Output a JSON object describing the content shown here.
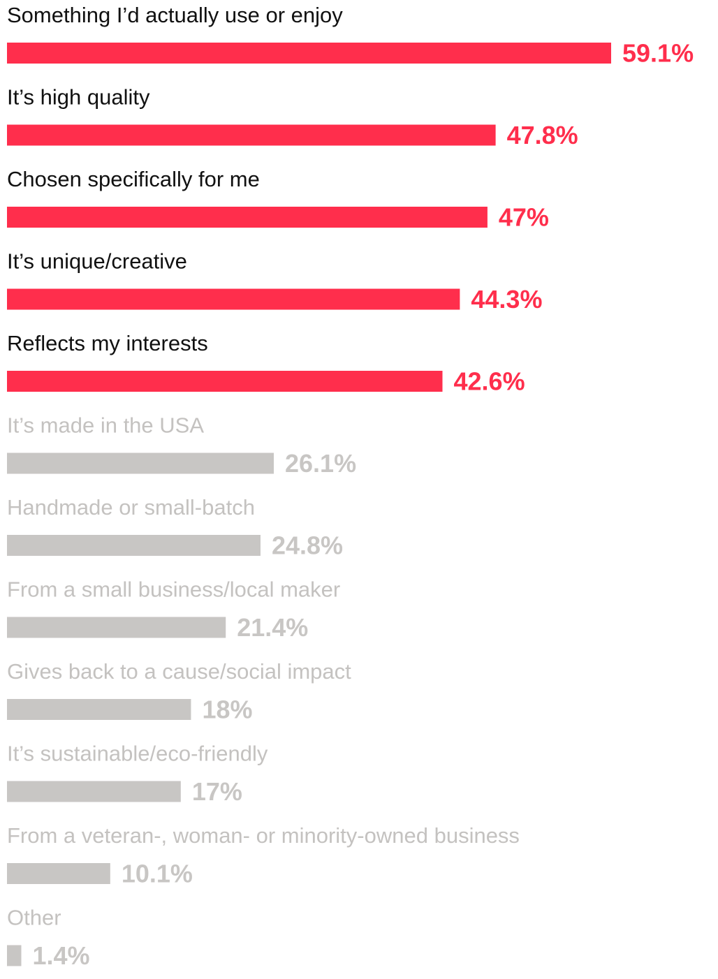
{
  "chart_data": {
    "type": "bar",
    "categories": [
      "Something I’d actually use or enjoy",
      "It’s high quality",
      "Chosen specifically for me",
      "It’s unique/creative",
      "Reflects my interests",
      "It’s made in the USA",
      "Handmade or small-batch",
      "From a small business/local maker",
      "Gives back to a cause/social impact",
      "It’s sustainable/eco-friendly",
      "From a veteran-, woman- or minority-owned business",
      "Other"
    ],
    "values": [
      59.1,
      47.8,
      47,
      44.3,
      42.6,
      26.1,
      24.8,
      21.4,
      18,
      17,
      10.1,
      1.4
    ],
    "value_labels": [
      "59.1%",
      "47.8%",
      "47%",
      "44.3%",
      "42.6%",
      "26.1%",
      "24.8%",
      "21.4%",
      "18%",
      "17%",
      "10.1%",
      "1.4%"
    ],
    "colors": [
      "#ff2e4c",
      "#ff2e4c",
      "#ff2e4c",
      "#ff2e4c",
      "#ff2e4c",
      "#c8c6c4",
      "#c8c6c4",
      "#c8c6c4",
      "#c8c6c4",
      "#c8c6c4",
      "#c8c6c4",
      "#c8c6c4"
    ],
    "label_colors": [
      "#111111",
      "#111111",
      "#111111",
      "#111111",
      "#111111",
      "#c4c2c0",
      "#c4c2c0",
      "#c4c2c0",
      "#c4c2c0",
      "#c4c2c0",
      "#c4c2c0",
      "#c4c2c0"
    ]
  }
}
